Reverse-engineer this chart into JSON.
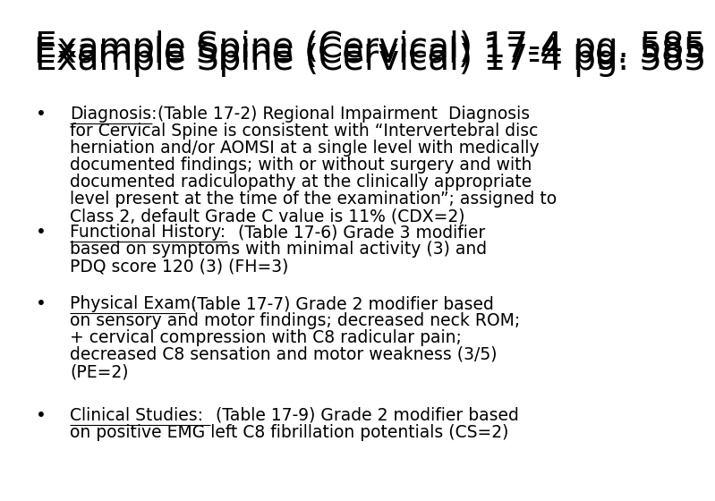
{
  "title": "Example Spine (Cervical) 17-4 pg. 585",
  "background_color": "#ffffff",
  "text_color": "#000000",
  "title_fontsize": 28,
  "body_fontsize": 13.5,
  "bullet_items": [
    {
      "label": "Diagnosis:",
      "rest": " (Table 17-2) Regional Impairment  Diagnosis for Cervical Spine is consistent with “Intervertebral disc herniation and/or AOMSI at a single level with medically documented findings; with or without surgery and with documented radiculopathy at the clinically appropriate level present at the time of the examination”; assigned to Class 2, default Grade C value is 11% (CDX=2)"
    },
    {
      "label": "Functional History:",
      "rest": "  (Table 17-6) Grade 3 modifier based on symptoms with minimal activity (3) and PDQ score 120 (3) (FH=3)"
    },
    {
      "label": "Physical Exam:",
      "rest": " (Table 17-7) Grade 2 modifier based on sensory and motor findings; decreased neck ROM; + cervical compression with C8 radicular pain; decreased C8 sensation and motor weakness (3/5) (PE=2)"
    },
    {
      "label": "Clinical Studies:",
      "rest": " (Table 17-9) Grade 2 modifier based on positive EMG left C8 fibrillation potentials (CS=2)"
    }
  ]
}
